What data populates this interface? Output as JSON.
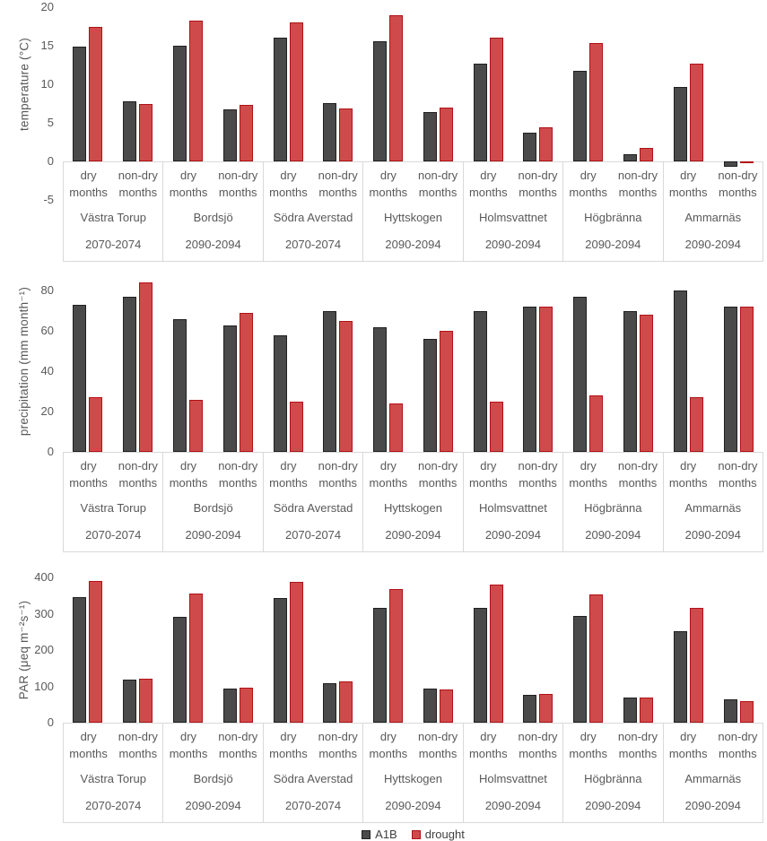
{
  "legend": {
    "position": "bottom",
    "items": [
      {
        "label": "A1B",
        "fill": "#4A4A4A",
        "border": "#1F1F1F"
      },
      {
        "label": "drought",
        "fill": "#CF4B4B",
        "border": "#B01116"
      }
    ]
  },
  "sites": [
    {
      "name": "Västra Torup",
      "period": "2070-2074"
    },
    {
      "name": "Bordsjö",
      "period": "2090-2094"
    },
    {
      "name": "Södra Averstad",
      "period": "2070-2074"
    },
    {
      "name": "Hyttskogen",
      "period": "2090-2094"
    },
    {
      "name": "Holmsvattnet",
      "period": "2090-2094"
    },
    {
      "name": "Högbränna",
      "period": "2090-2094"
    },
    {
      "name": "Ammarnäs",
      "period": "2090-2094"
    }
  ],
  "subcategories": [
    "dry months",
    "non-dry months"
  ],
  "axis_colors": {
    "text": "#595959",
    "line": "#D9D9D9"
  },
  "chart_data": [
    {
      "type": "bar",
      "ylabel": "temperature (°C)",
      "ylim": [
        -5,
        20
      ],
      "yticks": [
        20,
        15,
        10,
        5,
        0,
        -5
      ],
      "grid": false,
      "categories": [
        "Västra Torup 2070-2074",
        "Bordsjö 2090-2094",
        "Södra Averstad 2070-2074",
        "Hyttskogen 2090-2094",
        "Holmsvattnet 2090-2094",
        "Högbränna 2090-2094",
        "Ammarnäs 2090-2094"
      ],
      "series": [
        {
          "name": "A1B",
          "dry": [
            14.9,
            15.0,
            16.0,
            15.6,
            12.7,
            11.7,
            9.6
          ],
          "non_dry": [
            7.8,
            6.8,
            7.6,
            6.4,
            3.7,
            0.9,
            -0.7
          ]
        },
        {
          "name": "drought",
          "dry": [
            17.4,
            18.3,
            18.0,
            18.9,
            16.1,
            15.3,
            12.7
          ],
          "non_dry": [
            7.5,
            7.3,
            6.9,
            7.0,
            4.4,
            1.8,
            -0.2
          ]
        }
      ]
    },
    {
      "type": "bar",
      "ylabel": "precipitation (mm month⁻¹)",
      "ylim": [
        0,
        90
      ],
      "yticks": [
        80,
        60,
        40,
        20,
        0
      ],
      "grid": false,
      "categories": [
        "Västra Torup 2070-2074",
        "Bordsjö 2090-2094",
        "Södra Averstad 2070-2074",
        "Hyttskogen 2090-2094",
        "Holmsvattnet 2090-2094",
        "Högbränna 2090-2094",
        "Ammarnäs 2090-2094"
      ],
      "series": [
        {
          "name": "A1B",
          "dry": [
            73,
            66,
            58,
            62,
            70,
            77,
            80
          ],
          "non_dry": [
            77,
            63,
            70,
            56,
            72,
            70,
            72
          ]
        },
        {
          "name": "drought",
          "dry": [
            27,
            26,
            25,
            24,
            25,
            28,
            27
          ],
          "non_dry": [
            84,
            69,
            65,
            60,
            72,
            68,
            72
          ]
        }
      ]
    },
    {
      "type": "bar",
      "ylabel": "PAR (μeq m⁻²s⁻¹)",
      "ylim": [
        0,
        400
      ],
      "yticks": [
        400,
        300,
        200,
        100,
        0
      ],
      "grid": false,
      "categories": [
        "Västra Torup 2070-2074",
        "Bordsjö 2090-2094",
        "Södra Averstad 2070-2074",
        "Hyttskogen 2090-2094",
        "Holmsvattnet 2090-2094",
        "Högbränna 2090-2094",
        "Ammarnäs 2090-2094"
      ],
      "series": [
        {
          "name": "A1B",
          "dry": [
            345,
            292,
            342,
            315,
            317,
            294,
            253
          ],
          "non_dry": [
            118,
            95,
            109,
            94,
            77,
            68,
            63
          ]
        },
        {
          "name": "drought",
          "dry": [
            390,
            355,
            388,
            367,
            380,
            352,
            316
          ],
          "non_dry": [
            121,
            97,
            113,
            91,
            79,
            68,
            60
          ]
        }
      ]
    }
  ]
}
